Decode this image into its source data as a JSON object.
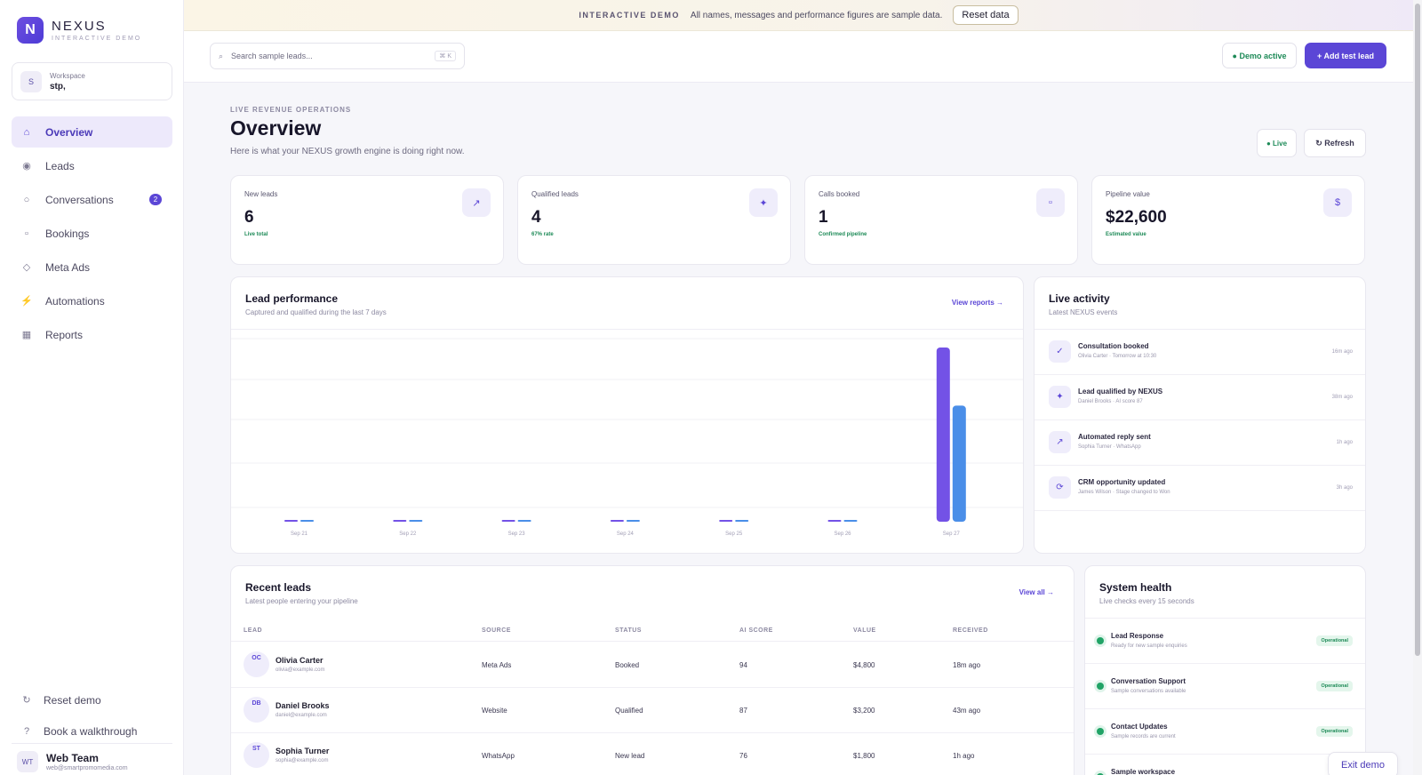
{
  "brand": {
    "name": "NEXUS",
    "subtitle": "INTERACTIVE DEMO",
    "logo_letter": "N"
  },
  "workspace": {
    "avatar": "S",
    "label": "Workspace",
    "name": "stp,"
  },
  "sidebar": {
    "items": [
      {
        "label": "Overview",
        "icon": "home-icon",
        "glyph": "⌂",
        "active": true
      },
      {
        "label": "Leads",
        "icon": "target-icon",
        "glyph": "◉"
      },
      {
        "label": "Conversations",
        "icon": "chat-icon",
        "glyph": "○",
        "badge": "2"
      },
      {
        "label": "Bookings",
        "icon": "calendar-icon",
        "glyph": "▫"
      },
      {
        "label": "Meta Ads",
        "icon": "diamond-icon",
        "glyph": "◇"
      },
      {
        "label": "Automations",
        "icon": "bolt-icon",
        "glyph": "⚡"
      },
      {
        "label": "Reports",
        "icon": "table-icon",
        "glyph": "▦"
      }
    ],
    "bottom": [
      {
        "label": "Reset demo",
        "icon": "reset-icon",
        "glyph": "↻"
      },
      {
        "label": "Book a walkthrough",
        "icon": "help-icon",
        "glyph": "?"
      }
    ],
    "user": {
      "initials": "WT",
      "name": "Web Team",
      "email": "web@smartpromomedia.com"
    }
  },
  "banner": {
    "tag": "INTERACTIVE DEMO",
    "text": "All names, messages and performance figures are sample data.",
    "button": "Reset data"
  },
  "topbar": {
    "search_placeholder": "Search sample leads...",
    "search_kbd": "⌘ K",
    "demo_status": "● Demo active",
    "add_button": "+ Add test lead"
  },
  "header": {
    "eyebrow": "LIVE REVENUE OPERATIONS",
    "title": "Overview",
    "subtitle": "Here is what your NEXUS growth engine is doing right now.",
    "live_button": "● Live",
    "refresh_button": "↻ Refresh"
  },
  "stats": [
    {
      "label": "New leads",
      "value": "6",
      "note": "Live total",
      "icon": "trend-icon",
      "glyph": "↗"
    },
    {
      "label": "Qualified leads",
      "value": "4",
      "note": "67% rate",
      "icon": "sparkle-icon",
      "glyph": "✦"
    },
    {
      "label": "Calls booked",
      "value": "1",
      "note": "Confirmed pipeline",
      "icon": "calendar-icon",
      "glyph": "▫"
    },
    {
      "label": "Pipeline value",
      "value": "$22,600",
      "note": "Estimated value",
      "icon": "dollar-icon",
      "glyph": "$"
    }
  ],
  "performance": {
    "title": "Lead performance",
    "subtitle": "Captured and qualified during the last 7 days",
    "link": "View reports →"
  },
  "chart_data": {
    "type": "bar",
    "categories": [
      "Sep 21",
      "Sep 22",
      "Sep 23",
      "Sep 24",
      "Sep 25",
      "Sep 26",
      "Sep 27"
    ],
    "series": [
      {
        "values": [
          0,
          0,
          0,
          0,
          0,
          0,
          6
        ],
        "color": "#7352e6"
      },
      {
        "values": [
          0,
          0,
          0,
          0,
          0,
          0,
          4
        ],
        "color": "#4a8ee8"
      }
    ],
    "ylim": [
      0,
      6
    ],
    "grid": true
  },
  "activity": {
    "title": "Live activity",
    "subtitle": "Latest NEXUS events",
    "items": [
      {
        "title": "Consultation booked",
        "sub": "Olivia Carter · Tomorrow at 10:30",
        "time": "16m ago",
        "icon": "check-icon",
        "glyph": "✓"
      },
      {
        "title": "Lead qualified by NEXUS",
        "sub": "Daniel Brooks · AI score 87",
        "time": "38m ago",
        "icon": "sparkle-icon",
        "glyph": "✦"
      },
      {
        "title": "Automated reply sent",
        "sub": "Sophia Turner · WhatsApp",
        "time": "1h ago",
        "icon": "send-icon",
        "glyph": "↗"
      },
      {
        "title": "CRM opportunity updated",
        "sub": "James Wilson · Stage changed to Won",
        "time": "3h ago",
        "icon": "sync-icon",
        "glyph": "⟳"
      }
    ]
  },
  "leads": {
    "title": "Recent leads",
    "subtitle": "Latest people entering your pipeline",
    "link": "View all →",
    "columns": [
      "LEAD",
      "SOURCE",
      "STATUS",
      "AI SCORE",
      "VALUE",
      "RECEIVED"
    ],
    "rows": [
      {
        "initials": "OC",
        "name": "Olivia Carter",
        "email": "olivia@example.com",
        "source": "Meta Ads",
        "status": "Booked",
        "score": "94",
        "value": "$4,800",
        "received": "18m ago"
      },
      {
        "initials": "DB",
        "name": "Daniel Brooks",
        "email": "daniel@example.com",
        "source": "Website",
        "status": "Qualified",
        "score": "87",
        "value": "$3,200",
        "received": "43m ago"
      },
      {
        "initials": "ST",
        "name": "Sophia Turner",
        "email": "sophia@example.com",
        "source": "WhatsApp",
        "status": "New lead",
        "score": "76",
        "value": "$1,800",
        "received": "1h ago"
      }
    ]
  },
  "health": {
    "title": "System health",
    "subtitle": "Live checks every 15 seconds",
    "items": [
      {
        "title": "Lead Response",
        "sub": "Ready for new sample enquiries",
        "status": "Operational"
      },
      {
        "title": "Conversation Support",
        "sub": "Sample conversations available",
        "status": "Operational"
      },
      {
        "title": "Contact Updates",
        "sub": "Sample records are current",
        "status": "Operational"
      },
      {
        "title": "Sample workspace",
        "sub": "",
        "status": ""
      }
    ]
  },
  "exit_demo": "Exit demo"
}
